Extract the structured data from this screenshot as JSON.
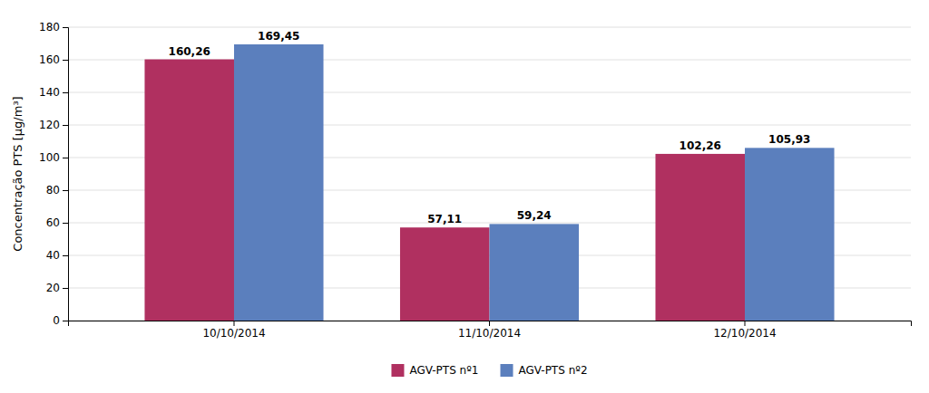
{
  "chart_data": {
    "type": "bar",
    "categories": [
      "10/10/2014",
      "11/10/2014",
      "12/10/2014"
    ],
    "series": [
      {
        "name": "AGV-PTS nº1",
        "color": "#b03060",
        "values": [
          160.26,
          57.11,
          102.26
        ],
        "value_labels": [
          "160,26",
          "57,11",
          "102,26"
        ]
      },
      {
        "name": "AGV-PTS nº2",
        "color": "#5b7fbd",
        "values": [
          169.45,
          59.24,
          105.93
        ],
        "value_labels": [
          "169,45",
          "59,24",
          "105,93"
        ]
      }
    ],
    "ylabel": "Concentração PTS [µg/m³]",
    "ylim": [
      0,
      180
    ],
    "yticks": [
      0,
      20,
      40,
      60,
      80,
      100,
      120,
      140,
      160,
      180
    ],
    "grid": true,
    "legend": "bottom",
    "data_labels": true
  }
}
